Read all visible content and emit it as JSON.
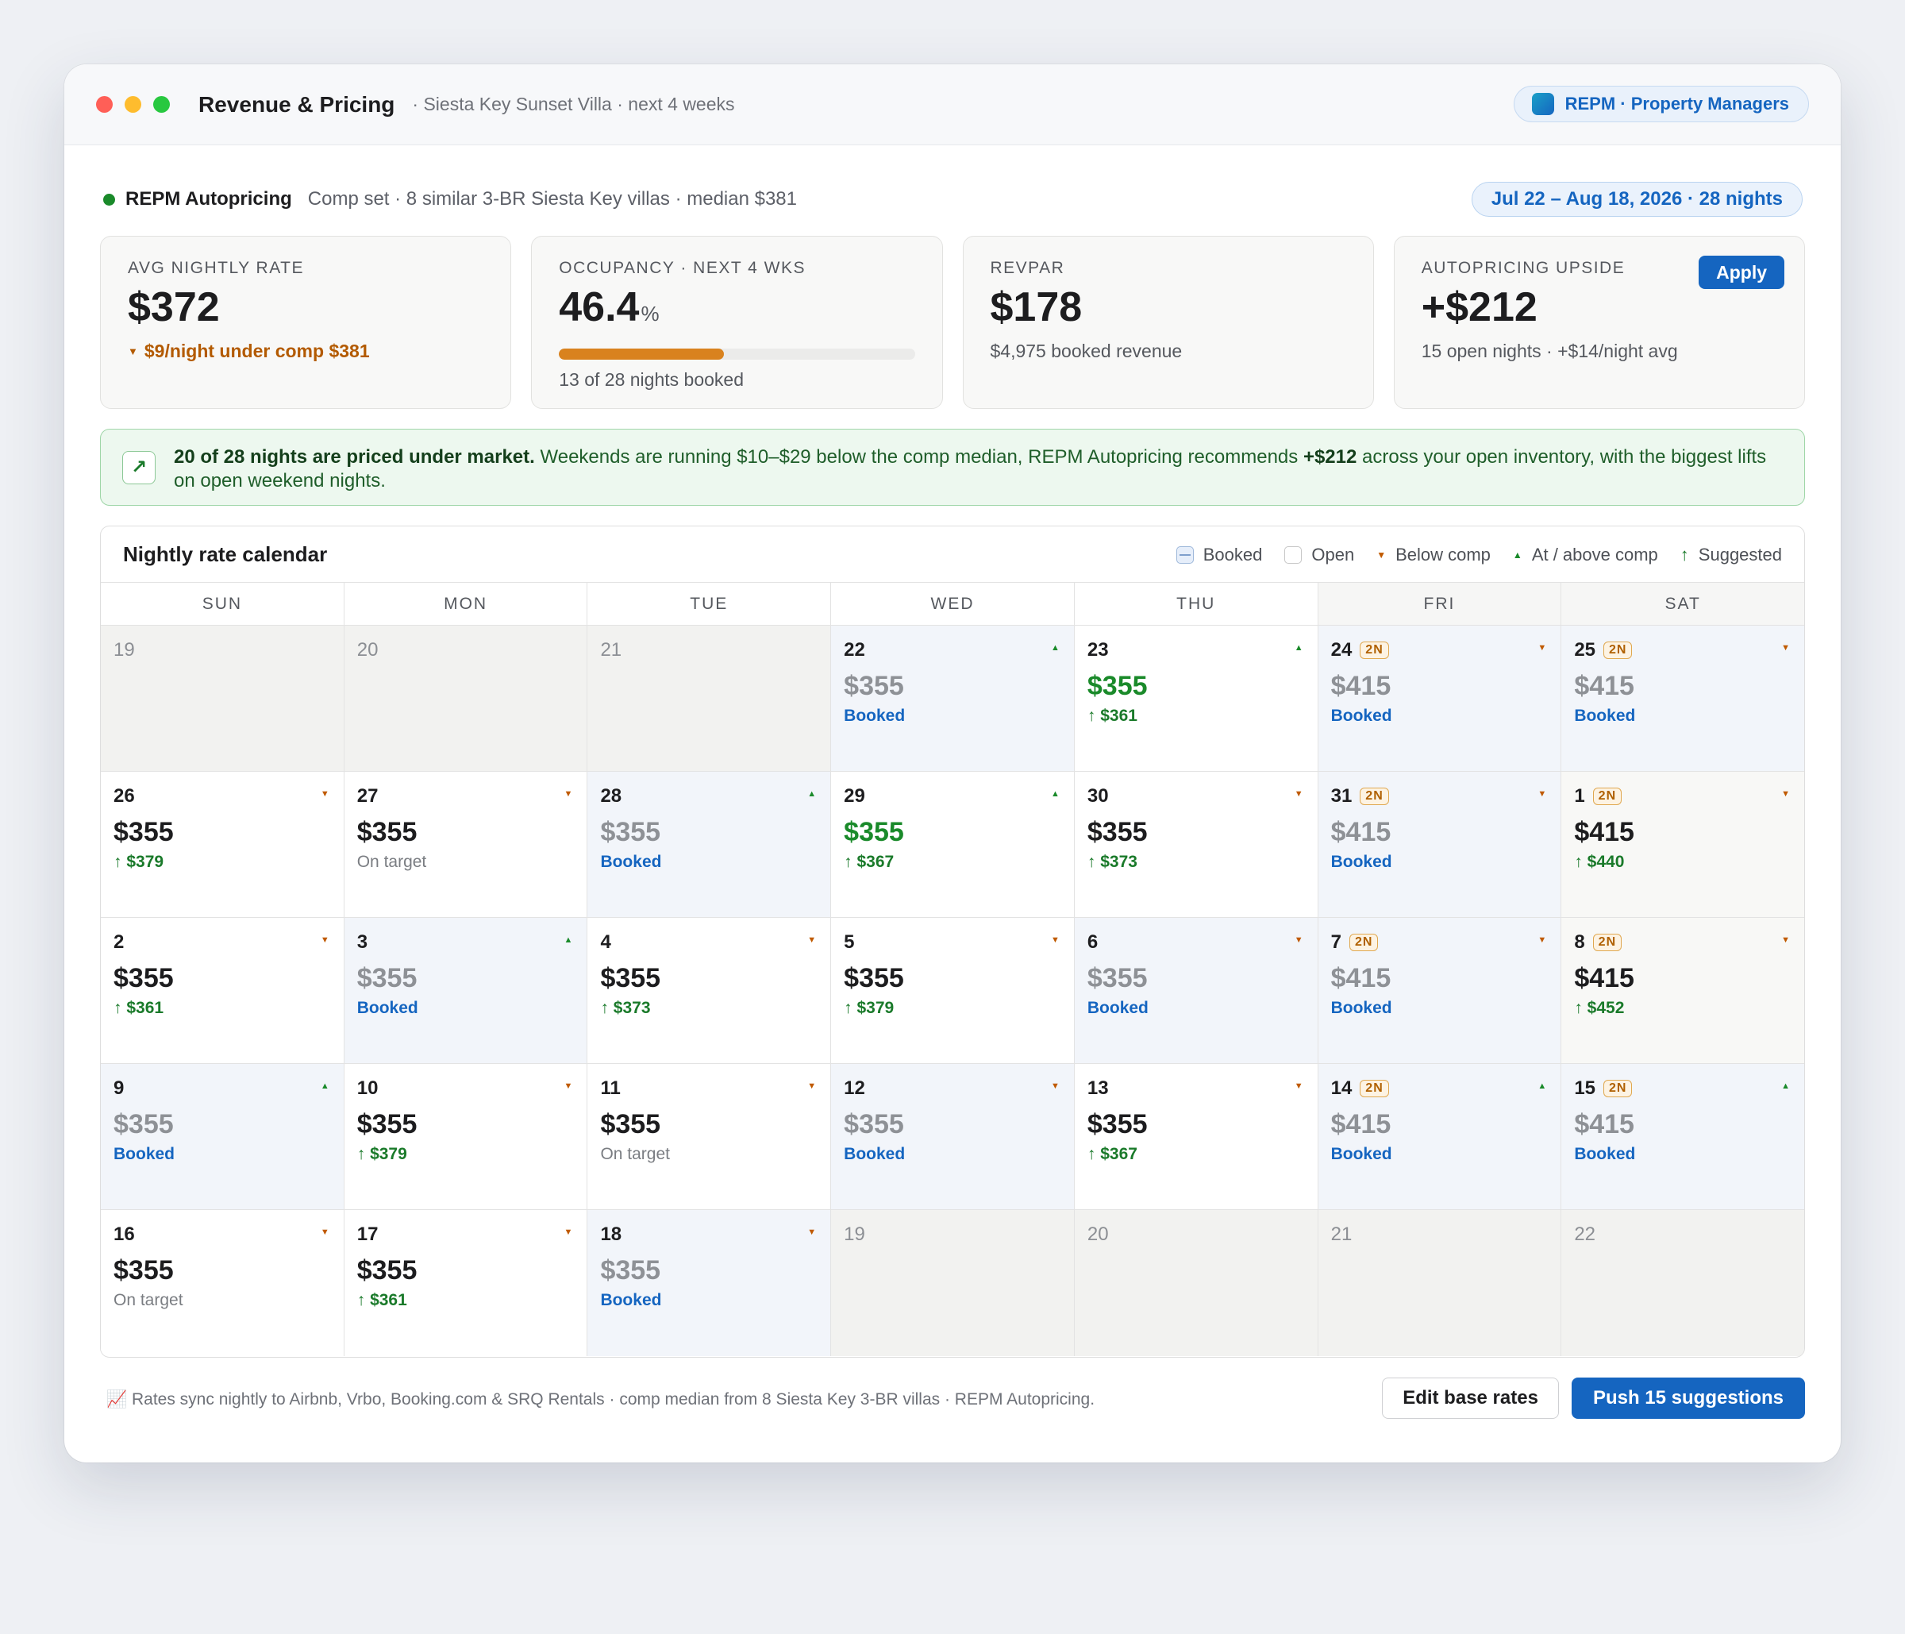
{
  "window": {
    "title": "Revenue & Pricing",
    "subtitle": "· Siesta Key Sunset Villa · next 4 weeks",
    "brand": "REPM · Property Managers"
  },
  "status": {
    "name": "REPM Autopricing",
    "meta": "Comp set · 8 similar 3-BR Siesta Key villas · median $381",
    "date_range": "Jul 22 – Aug 18, 2026 · 28 nights"
  },
  "kpis": {
    "avg_rate": {
      "label": "AVG NIGHTLY RATE",
      "value": "$372",
      "sub": "$9/night under comp $381"
    },
    "occupancy": {
      "label": "OCCUPANCY · NEXT 4 WKS",
      "value": "46.4",
      "unit": "%",
      "progress_pct": 46.4,
      "sub": "13 of 28 nights booked"
    },
    "revpar": {
      "label": "REVPAR",
      "value": "$178",
      "sub": "$4,975 booked revenue"
    },
    "upside": {
      "label": "AUTOPRICING UPSIDE",
      "value": "+$212",
      "sub": "15 open nights · +$14/night avg",
      "apply_label": "Apply"
    }
  },
  "insight": {
    "icon": "trend-up-arrow-icon",
    "lead": "20 of 28 nights are priced under market.",
    "text_before": " Weekends are running $10–$29 below the comp median, REPM Autopricing recommends ",
    "amount": "+$212",
    "text_after": " across your open inventory, with the biggest lifts on open weekend nights."
  },
  "calendar": {
    "title": "Nightly rate calendar",
    "legend": {
      "booked": "Booked",
      "open": "Open",
      "below": "Below comp",
      "above": "At / above comp",
      "suggested": "Suggested"
    },
    "dow": [
      "SUN",
      "MON",
      "TUE",
      "WED",
      "THU",
      "FRI",
      "SAT"
    ],
    "weeks": [
      [
        {
          "day": "19",
          "state": "out"
        },
        {
          "day": "20",
          "state": "out"
        },
        {
          "day": "21",
          "state": "out"
        },
        {
          "day": "22",
          "state": "booked",
          "price": "$355",
          "comp": "up",
          "sub": "Booked",
          "sub_type": "booked"
        },
        {
          "day": "23",
          "state": "open",
          "price": "$355",
          "price_green": true,
          "comp": "up",
          "sub": "$361",
          "sub_type": "sugg"
        },
        {
          "day": "24",
          "badge": "2N",
          "state": "booked",
          "price": "$415",
          "comp": "down",
          "sub": "Booked",
          "sub_type": "booked"
        },
        {
          "day": "25",
          "badge": "2N",
          "state": "booked",
          "price": "$415",
          "comp": "down",
          "sub": "Booked",
          "sub_type": "booked"
        }
      ],
      [
        {
          "day": "26",
          "state": "open",
          "price": "$355",
          "comp": "down",
          "sub": "$379",
          "sub_type": "sugg"
        },
        {
          "day": "27",
          "state": "open",
          "price": "$355",
          "comp": "down",
          "sub": "On target",
          "sub_type": "ontarget"
        },
        {
          "day": "28",
          "state": "booked",
          "price": "$355",
          "comp": "up",
          "sub": "Booked",
          "sub_type": "booked"
        },
        {
          "day": "29",
          "state": "open",
          "price": "$355",
          "price_green": true,
          "comp": "up",
          "sub": "$367",
          "sub_type": "sugg"
        },
        {
          "day": "30",
          "state": "open",
          "price": "$355",
          "comp": "down",
          "sub": "$373",
          "sub_type": "sugg"
        },
        {
          "day": "31",
          "badge": "2N",
          "state": "booked",
          "price": "$415",
          "comp": "down",
          "sub": "Booked",
          "sub_type": "booked"
        },
        {
          "day": "1",
          "badge": "2N",
          "state": "open",
          "price": "$415",
          "comp": "down",
          "sub": "$440",
          "sub_type": "sugg"
        }
      ],
      [
        {
          "day": "2",
          "state": "open",
          "price": "$355",
          "comp": "down",
          "sub": "$361",
          "sub_type": "sugg"
        },
        {
          "day": "3",
          "state": "booked",
          "price": "$355",
          "comp": "up",
          "sub": "Booked",
          "sub_type": "booked"
        },
        {
          "day": "4",
          "state": "open",
          "price": "$355",
          "comp": "down",
          "sub": "$373",
          "sub_type": "sugg"
        },
        {
          "day": "5",
          "state": "open",
          "price": "$355",
          "comp": "down",
          "sub": "$379",
          "sub_type": "sugg"
        },
        {
          "day": "6",
          "state": "booked",
          "price": "$355",
          "comp": "down",
          "sub": "Booked",
          "sub_type": "booked"
        },
        {
          "day": "7",
          "badge": "2N",
          "state": "booked",
          "price": "$415",
          "comp": "down",
          "sub": "Booked",
          "sub_type": "booked"
        },
        {
          "day": "8",
          "badge": "2N",
          "state": "open",
          "price": "$415",
          "comp": "down",
          "sub": "$452",
          "sub_type": "sugg"
        }
      ],
      [
        {
          "day": "9",
          "state": "booked",
          "price": "$355",
          "comp": "up",
          "sub": "Booked",
          "sub_type": "booked"
        },
        {
          "day": "10",
          "state": "open",
          "price": "$355",
          "comp": "down",
          "sub": "$379",
          "sub_type": "sugg"
        },
        {
          "day": "11",
          "state": "open",
          "price": "$355",
          "comp": "down",
          "sub": "On target",
          "sub_type": "ontarget"
        },
        {
          "day": "12",
          "state": "booked",
          "price": "$355",
          "comp": "down",
          "sub": "Booked",
          "sub_type": "booked"
        },
        {
          "day": "13",
          "state": "open",
          "price": "$355",
          "comp": "down",
          "sub": "$367",
          "sub_type": "sugg"
        },
        {
          "day": "14",
          "badge": "2N",
          "state": "booked",
          "price": "$415",
          "comp": "up",
          "sub": "Booked",
          "sub_type": "booked"
        },
        {
          "day": "15",
          "badge": "2N",
          "state": "booked",
          "price": "$415",
          "comp": "up",
          "sub": "Booked",
          "sub_type": "booked"
        }
      ],
      [
        {
          "day": "16",
          "state": "open",
          "price": "$355",
          "comp": "down",
          "sub": "On target",
          "sub_type": "ontarget"
        },
        {
          "day": "17",
          "state": "open",
          "price": "$355",
          "comp": "down",
          "sub": "$361",
          "sub_type": "sugg"
        },
        {
          "day": "18",
          "state": "booked",
          "price": "$355",
          "comp": "down",
          "sub": "Booked",
          "sub_type": "booked"
        },
        {
          "day": "19",
          "state": "out"
        },
        {
          "day": "20",
          "state": "out"
        },
        {
          "day": "21",
          "state": "out"
        },
        {
          "day": "22",
          "state": "out"
        }
      ]
    ]
  },
  "footer": {
    "icon": "chart-emoji-icon",
    "note": "📈 Rates sync nightly to Airbnb, Vrbo, Booking.com & SRQ Rentals · comp median from 8 Siesta Key 3-BR villas · REPM Autopricing.",
    "edit_label": "Edit base rates",
    "push_label": "Push 15 suggestions"
  },
  "colors": {
    "accent": "#1565c0",
    "below_comp": "#c05a00",
    "above_comp": "#1a8a2a",
    "occupancy_bar": "#d9821e"
  }
}
